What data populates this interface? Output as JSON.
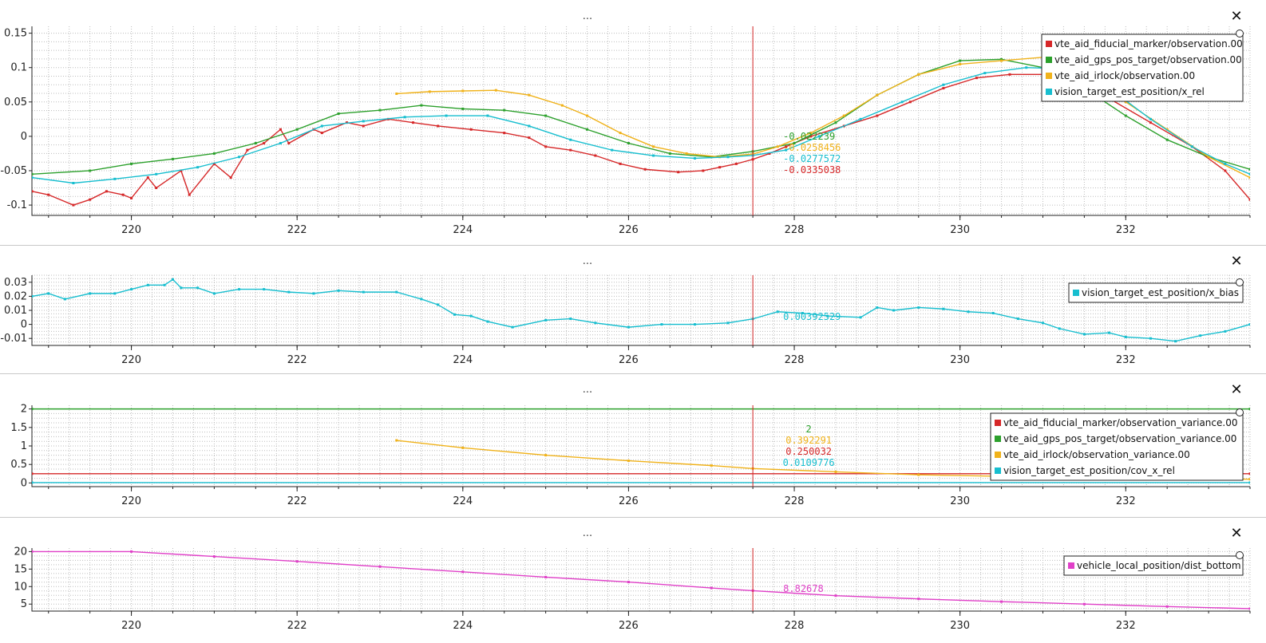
{
  "window": {
    "title_dots": "...",
    "close_glyph": "✕",
    "handle_glyph": "○"
  },
  "chart_data": [
    {
      "type": "line",
      "xlim": [
        218.8,
        233.5
      ],
      "ylim": [
        -0.115,
        0.16
      ],
      "x_ticks": [
        220,
        222,
        224,
        226,
        228,
        230,
        232
      ],
      "y_ticks": [
        -0.1,
        -0.05,
        0,
        0.05,
        0.1,
        0.15
      ],
      "y_tick_labels": [
        "-0.1",
        "-0.05",
        "0",
        "0.05",
        "0.1",
        "0.15"
      ],
      "grid": true,
      "legend_position": "top-right",
      "cursor_x": 227.5,
      "series": [
        {
          "name": "vte_aid_fiducial_marker/observation.00",
          "color": "#d62728",
          "x": [
            218.8,
            219.0,
            219.3,
            219.5,
            219.7,
            219.9,
            220.0,
            220.2,
            220.3,
            220.6,
            220.7,
            221.0,
            221.2,
            221.4,
            221.6,
            221.8,
            221.9,
            222.2,
            222.3,
            222.6,
            222.8,
            223.1,
            223.4,
            223.7,
            224.1,
            224.5,
            224.8,
            225.0,
            225.3,
            225.6,
            225.9,
            226.2,
            226.6,
            226.9,
            227.1,
            227.3,
            227.5,
            227.7,
            227.9,
            228.2,
            228.6,
            229.0,
            229.4,
            229.8,
            230.2,
            230.6,
            231.0,
            231.3,
            231.8,
            232.3,
            232.8,
            233.2,
            233.5
          ],
          "y": [
            -0.08,
            -0.085,
            -0.1,
            -0.092,
            -0.08,
            -0.085,
            -0.09,
            -0.06,
            -0.075,
            -0.05,
            -0.085,
            -0.04,
            -0.06,
            -0.02,
            -0.01,
            0.01,
            -0.01,
            0.01,
            0.005,
            0.02,
            0.015,
            0.025,
            0.02,
            0.015,
            0.01,
            0.005,
            -0.002,
            -0.015,
            -0.02,
            -0.028,
            -0.04,
            -0.048,
            -0.052,
            -0.05,
            -0.045,
            -0.04,
            -0.0335,
            -0.025,
            -0.015,
            0.0,
            0.015,
            0.03,
            0.05,
            0.07,
            0.085,
            0.09,
            0.09,
            0.085,
            0.055,
            0.02,
            -0.015,
            -0.05,
            -0.092
          ]
        },
        {
          "name": "vte_aid_gps_pos_target/observation.00",
          "color": "#2ca02c",
          "x": [
            218.8,
            219.5,
            220.0,
            220.5,
            221.0,
            221.5,
            222.0,
            222.5,
            223.0,
            223.5,
            224.0,
            224.5,
            225.0,
            225.5,
            226.0,
            226.5,
            227.0,
            227.5,
            228.0,
            228.5,
            229.0,
            229.5,
            230.0,
            230.5,
            231.0,
            231.5,
            232.0,
            232.5,
            233.0,
            233.5
          ],
          "y": [
            -0.055,
            -0.05,
            -0.04,
            -0.033,
            -0.025,
            -0.01,
            0.01,
            0.033,
            0.038,
            0.045,
            0.04,
            0.038,
            0.03,
            0.01,
            -0.01,
            -0.025,
            -0.03,
            -0.022,
            -0.01,
            0.02,
            0.06,
            0.09,
            0.11,
            0.112,
            0.1,
            0.07,
            0.03,
            -0.005,
            -0.03,
            -0.048
          ]
        },
        {
          "name": "vte_aid_irlock/observation.00",
          "color": "#f0b21a",
          "x": [
            223.2,
            223.6,
            224.0,
            224.4,
            224.8,
            225.2,
            225.5,
            225.9,
            226.3,
            226.7,
            227.1,
            227.5,
            227.8,
            228.2,
            228.6,
            229.0,
            229.5,
            230.0,
            230.5,
            231.0,
            231.5,
            232.0,
            232.5,
            233.0,
            233.5
          ],
          "y": [
            0.062,
            0.065,
            0.066,
            0.067,
            0.06,
            0.045,
            0.03,
            0.005,
            -0.015,
            -0.025,
            -0.03,
            -0.0258,
            -0.015,
            0.005,
            0.03,
            0.06,
            0.09,
            0.105,
            0.11,
            0.115,
            0.09,
            0.05,
            0.01,
            -0.03,
            -0.06
          ]
        },
        {
          "name": "vision_target_est_position/x_rel",
          "color": "#17becf",
          "x": [
            218.8,
            219.3,
            219.8,
            220.3,
            220.8,
            221.3,
            221.8,
            222.3,
            222.8,
            223.3,
            223.8,
            224.3,
            224.8,
            225.3,
            225.8,
            226.3,
            226.8,
            227.2,
            227.5,
            227.9,
            228.3,
            228.8,
            229.3,
            229.8,
            230.3,
            230.8,
            231.3,
            231.8,
            232.3,
            232.8,
            233.2,
            233.5
          ],
          "y": [
            -0.06,
            -0.068,
            -0.062,
            -0.055,
            -0.045,
            -0.03,
            -0.01,
            0.015,
            0.022,
            0.028,
            0.03,
            0.03,
            0.015,
            -0.005,
            -0.02,
            -0.028,
            -0.032,
            -0.03,
            -0.0278,
            -0.02,
            0.0,
            0.025,
            0.05,
            0.075,
            0.092,
            0.1,
            0.098,
            0.07,
            0.025,
            -0.015,
            -0.04,
            -0.055
          ]
        }
      ],
      "cursor_values": [
        {
          "text": "-0.022239",
          "color": "#2ca02c"
        },
        {
          "text": "-0.0258456",
          "color": "#f0b21a"
        },
        {
          "text": "-0.0277572",
          "color": "#17becf"
        },
        {
          "text": "-0.0335038",
          "color": "#d62728"
        }
      ]
    },
    {
      "type": "line",
      "xlim": [
        218.8,
        233.5
      ],
      "ylim": [
        -0.015,
        0.035
      ],
      "x_ticks": [
        220,
        222,
        224,
        226,
        228,
        230,
        232
      ],
      "y_ticks": [
        -0.01,
        0,
        0.01,
        0.02,
        0.03
      ],
      "y_tick_labels": [
        "-0.01",
        "0",
        "0.01",
        "0.02",
        "0.03"
      ],
      "grid": true,
      "legend_position": "top-right",
      "cursor_x": 227.5,
      "series": [
        {
          "name": "vision_target_est_position/x_bias",
          "color": "#17becf",
          "x": [
            218.8,
            219.0,
            219.2,
            219.5,
            219.8,
            220.0,
            220.2,
            220.4,
            220.5,
            220.6,
            220.8,
            221.0,
            221.3,
            221.6,
            221.9,
            222.2,
            222.5,
            222.8,
            223.2,
            223.5,
            223.7,
            223.9,
            224.1,
            224.3,
            224.6,
            225.0,
            225.3,
            225.6,
            226.0,
            226.4,
            226.8,
            227.2,
            227.5,
            227.8,
            228.1,
            228.4,
            228.8,
            229.0,
            229.2,
            229.5,
            229.8,
            230.1,
            230.4,
            230.7,
            231.0,
            231.2,
            231.5,
            231.8,
            232.0,
            232.3,
            232.6,
            232.9,
            233.2,
            233.5
          ],
          "y": [
            0.02,
            0.022,
            0.018,
            0.022,
            0.022,
            0.025,
            0.028,
            0.028,
            0.032,
            0.026,
            0.026,
            0.022,
            0.025,
            0.025,
            0.023,
            0.022,
            0.024,
            0.023,
            0.023,
            0.018,
            0.014,
            0.007,
            0.006,
            0.002,
            -0.002,
            0.003,
            0.004,
            0.001,
            -0.002,
            0.0,
            0.0,
            0.001,
            0.0039,
            0.009,
            0.008,
            0.006,
            0.005,
            0.012,
            0.01,
            0.012,
            0.011,
            0.009,
            0.008,
            0.004,
            0.001,
            -0.003,
            -0.007,
            -0.006,
            -0.009,
            -0.01,
            -0.012,
            -0.008,
            -0.005,
            0.0
          ]
        }
      ],
      "cursor_values": [
        {
          "text": "0.00392529",
          "color": "#17becf"
        }
      ]
    },
    {
      "type": "line",
      "xlim": [
        218.8,
        233.5
      ],
      "ylim": [
        -0.1,
        2.1
      ],
      "x_ticks": [
        220,
        222,
        224,
        226,
        228,
        230,
        232
      ],
      "y_ticks": [
        0,
        0.5,
        1,
        1.5,
        2
      ],
      "y_tick_labels": [
        "0",
        "0.5",
        "1",
        "1.5",
        "2"
      ],
      "grid": true,
      "legend_position": "top-right",
      "cursor_x": 227.5,
      "series": [
        {
          "name": "vte_aid_fiducial_marker/observation_variance.00",
          "color": "#d62728",
          "x": [
            218.8,
            233.5
          ],
          "y": [
            0.25,
            0.25
          ]
        },
        {
          "name": "vte_aid_gps_pos_target/observation_variance.00",
          "color": "#2ca02c",
          "x": [
            218.8,
            233.5
          ],
          "y": [
            2,
            2
          ]
        },
        {
          "name": "vte_aid_irlock/observation_variance.00",
          "color": "#f0b21a",
          "x": [
            223.2,
            224.0,
            225.0,
            226.0,
            227.0,
            227.5,
            228.5,
            229.5,
            230.5,
            231.5,
            232.5,
            233.5
          ],
          "y": [
            1.15,
            0.95,
            0.75,
            0.6,
            0.47,
            0.39,
            0.3,
            0.22,
            0.18,
            0.14,
            0.12,
            0.1
          ]
        },
        {
          "name": "vision_target_est_position/cov_x_rel",
          "color": "#17becf",
          "x": [
            218.8,
            233.5
          ],
          "y": [
            0.01,
            0.01
          ]
        }
      ],
      "cursor_values": [
        {
          "text": "2",
          "color": "#2ca02c"
        },
        {
          "text": "0.392291",
          "color": "#f0b21a"
        },
        {
          "text": "0.250032",
          "color": "#d62728"
        },
        {
          "text": "0.0109776",
          "color": "#17becf"
        }
      ]
    },
    {
      "type": "line",
      "xlim": [
        218.8,
        233.5
      ],
      "ylim": [
        3,
        21
      ],
      "x_ticks": [
        220,
        222,
        224,
        226,
        228,
        230,
        232
      ],
      "y_ticks": [
        5,
        10,
        15,
        20
      ],
      "y_tick_labels": [
        "5",
        "10",
        "15",
        "20"
      ],
      "grid": true,
      "legend_position": "top-right",
      "cursor_x": 227.5,
      "series": [
        {
          "name": "vehicle_local_position/dist_bottom",
          "color": "#e040c8",
          "x": [
            218.8,
            220.0,
            221.0,
            222.0,
            223.0,
            224.0,
            225.0,
            226.0,
            227.0,
            227.5,
            228.5,
            229.5,
            230.5,
            231.5,
            232.5,
            233.5
          ],
          "y": [
            20,
            20,
            18.6,
            17.2,
            15.7,
            14.2,
            12.7,
            11.3,
            9.6,
            8.83,
            7.4,
            6.5,
            5.7,
            5.0,
            4.3,
            3.7
          ]
        }
      ],
      "cursor_values": [
        {
          "text": "8.82678",
          "color": "#e040c8"
        }
      ]
    }
  ]
}
